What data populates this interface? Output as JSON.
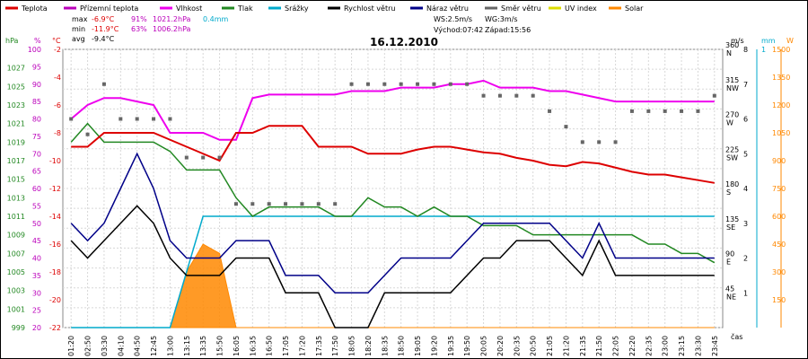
{
  "chart_data": {
    "type": "line",
    "title": "16.12.2010",
    "legend": [
      {
        "key": "temp",
        "label": "Teplota",
        "color": "#dd0000"
      },
      {
        "key": "windchill",
        "label": "Přízemní teplota",
        "color": "#bb00bb"
      },
      {
        "key": "humidity",
        "label": "Vlhkost",
        "color": "#ee00ee"
      },
      {
        "key": "pressure",
        "label": "Tlak",
        "color": "#228822"
      },
      {
        "key": "rain",
        "label": "Srážky",
        "color": "#00aacc"
      },
      {
        "key": "wind",
        "label": "Rychlost větru",
        "color": "#000000"
      },
      {
        "key": "gust",
        "label": "Náraz větru",
        "color": "#000088"
      },
      {
        "key": "dir",
        "label": "Směr větru",
        "color": "#666666"
      },
      {
        "key": "uv",
        "label": "UV index",
        "color": "#dddd00"
      },
      {
        "key": "solar",
        "label": "Solar",
        "color": "#ff8800"
      }
    ],
    "stats": {
      "max": {
        "label": "max",
        "temp": "-6.9°C",
        "hum": "91%",
        "press": "1021.2hPa",
        "rain": "0.4mm"
      },
      "min": {
        "label": "min",
        "temp": "-11.9°C",
        "hum": "63%",
        "press": "1006.2hPa"
      },
      "avg": {
        "label": "avg",
        "temp": "-9.4°C"
      },
      "ws": "WS:2.5m/s",
      "wg": "WG:3m/s",
      "sunrise": "Východ:07:42",
      "sunset": "Západ:15:56"
    },
    "units": {
      "press": "hPa",
      "hum": "%",
      "temp": "°C",
      "wind": "m/s",
      "rain": "mm",
      "solar": "W",
      "time": "čas"
    },
    "axes": {
      "pressure": {
        "ticks": [
          "999",
          "1001",
          "1003",
          "1005",
          "1007",
          "1009",
          "1011",
          "1013",
          "1015",
          "1017",
          "1019",
          "1021",
          "1023",
          "1025",
          "1027"
        ],
        "range": [
          999,
          1029
        ]
      },
      "humidity": {
        "ticks": [
          "20",
          "25",
          "30",
          "35",
          "40",
          "45",
          "50",
          "55",
          "60",
          "65",
          "70",
          "75",
          "80",
          "85",
          "90",
          "95",
          "100"
        ],
        "range": [
          20,
          100
        ]
      },
      "temperature": {
        "ticks": [
          "-22",
          "-20",
          "-18",
          "-16",
          "-14",
          "-12",
          "-10",
          "-8",
          "-6",
          "-4",
          "-2"
        ],
        "range": [
          -22,
          -2
        ]
      },
      "direction": {
        "ticks": [
          {
            "deg": "45",
            "dir": "NE"
          },
          {
            "deg": "90",
            "dir": "E"
          },
          {
            "deg": "135",
            "dir": "SE"
          },
          {
            "deg": "180",
            "dir": "S"
          },
          {
            "deg": "225",
            "dir": "SW"
          },
          {
            "deg": "270",
            "dir": "W"
          },
          {
            "deg": "315",
            "dir": "NW"
          },
          {
            "deg": "360",
            "dir": "N"
          }
        ],
        "range": [
          0,
          360
        ]
      },
      "wind": {
        "ticks": [
          "1",
          "2",
          "3",
          "4",
          "5",
          "6",
          "7",
          "8"
        ],
        "range": [
          0,
          8
        ]
      },
      "rain": {
        "ticks": [
          "1"
        ],
        "range": [
          0,
          1
        ]
      },
      "solar": {
        "ticks": [
          "150",
          "300",
          "450",
          "600",
          "750",
          "900",
          "1050",
          "1200",
          "1350",
          "1500"
        ],
        "range": [
          0,
          1500
        ]
      },
      "time": {
        "ticks": [
          "01:20",
          "02:50",
          "03:30",
          "04:10",
          "04:50",
          "12:45",
          "13:00",
          "13:15",
          "13:35",
          "15:50",
          "16:05",
          "16:35",
          "16:50",
          "17:05",
          "17:20",
          "17:35",
          "17:50",
          "18:05",
          "18:20",
          "18:35",
          "18:50",
          "19:05",
          "19:20",
          "19:35",
          "19:50",
          "20:05",
          "20:20",
          "20:35",
          "20:50",
          "21:05",
          "21:20",
          "21:35",
          "21:50",
          "22:05",
          "22:20",
          "22:35",
          "23:00",
          "23:15",
          "23:30",
          "23:45"
        ]
      }
    },
    "series": {
      "temp": [
        -9,
        -9,
        -8,
        -8,
        -8,
        -8,
        -8.5,
        -9,
        -9.5,
        -10,
        -8,
        -8,
        -7.5,
        -7.5,
        -7.5,
        -9,
        -9,
        -9,
        -9.5,
        -9.5,
        -9.5,
        -9.2,
        -9,
        -9,
        -9.2,
        -9.4,
        -9.5,
        -9.8,
        -10,
        -10.3,
        -10.4,
        -10.1,
        -10.2,
        -10.5,
        -10.8,
        -11,
        -11,
        -11.2,
        -11.4,
        -11.6
      ],
      "humidity": [
        80,
        84,
        86,
        86,
        85,
        84,
        76,
        76,
        76,
        74,
        74,
        86,
        87,
        87,
        87,
        87,
        87,
        88,
        88,
        88,
        89,
        89,
        89,
        90,
        90,
        91,
        89,
        89,
        89,
        88,
        88,
        87,
        86,
        85,
        85,
        85,
        85,
        85,
        85,
        85
      ],
      "pressure": [
        1019,
        1021,
        1019,
        1019,
        1019,
        1019,
        1018,
        1016,
        1016,
        1016,
        1013,
        1011,
        1012,
        1012,
        1012,
        1012,
        1011,
        1011,
        1013,
        1012,
        1012,
        1011,
        1012,
        1011,
        1011,
        1010,
        1010,
        1010,
        1009,
        1009,
        1009,
        1009,
        1009,
        1009,
        1009,
        1008,
        1008,
        1007,
        1007,
        1006
      ],
      "rain": [
        0,
        0,
        0,
        0,
        0,
        0,
        0,
        0.2,
        0.4,
        0.4,
        0.4,
        0.4,
        0.4,
        0.4,
        0.4,
        0.4,
        0.4,
        0.4,
        0.4,
        0.4,
        0.4,
        0.4,
        0.4,
        0.4,
        0.4,
        0.4,
        0.4,
        0.4,
        0.4,
        0.4,
        0.4,
        0.4,
        0.4,
        0.4,
        0.4,
        0.4,
        0.4,
        0.4,
        0.4,
        0.4
      ],
      "wind": [
        2.5,
        2,
        2.5,
        3,
        3.5,
        3,
        2,
        1.5,
        1.5,
        1.5,
        2,
        2,
        2,
        1,
        1,
        1,
        0,
        0,
        0,
        1,
        1,
        1,
        1,
        1,
        1.5,
        2,
        2,
        2.5,
        2.5,
        2.5,
        2,
        1.5,
        2.5,
        1.5,
        1.5,
        1.5,
        1.5,
        1.5,
        1.5,
        1.5
      ],
      "gust": [
        3,
        2.5,
        3,
        4,
        5,
        4,
        2.5,
        2,
        2,
        2,
        2.5,
        2.5,
        2.5,
        1.5,
        1.5,
        1.5,
        1,
        1,
        1,
        1.5,
        2,
        2,
        2,
        2,
        2.5,
        3,
        3,
        3,
        3,
        3,
        2.5,
        2,
        3,
        2,
        2,
        2,
        2,
        2,
        2,
        2
      ],
      "direction": [
        270,
        250,
        315,
        270,
        270,
        270,
        270,
        220,
        220,
        220,
        160,
        160,
        160,
        160,
        160,
        160,
        160,
        315,
        315,
        315,
        315,
        315,
        315,
        315,
        315,
        300,
        300,
        300,
        300,
        280,
        260,
        240,
        240,
        240,
        280,
        280,
        280,
        280,
        280,
        300
      ],
      "solar": [
        0,
        0,
        0,
        0,
        0,
        0,
        0,
        300,
        450,
        400,
        0,
        0,
        0,
        0,
        0,
        0,
        0,
        0,
        0,
        0,
        0,
        0,
        0,
        0,
        0,
        0,
        0,
        0,
        0,
        0,
        0,
        0,
        0,
        0,
        0,
        0,
        0,
        0,
        0,
        0
      ]
    }
  }
}
